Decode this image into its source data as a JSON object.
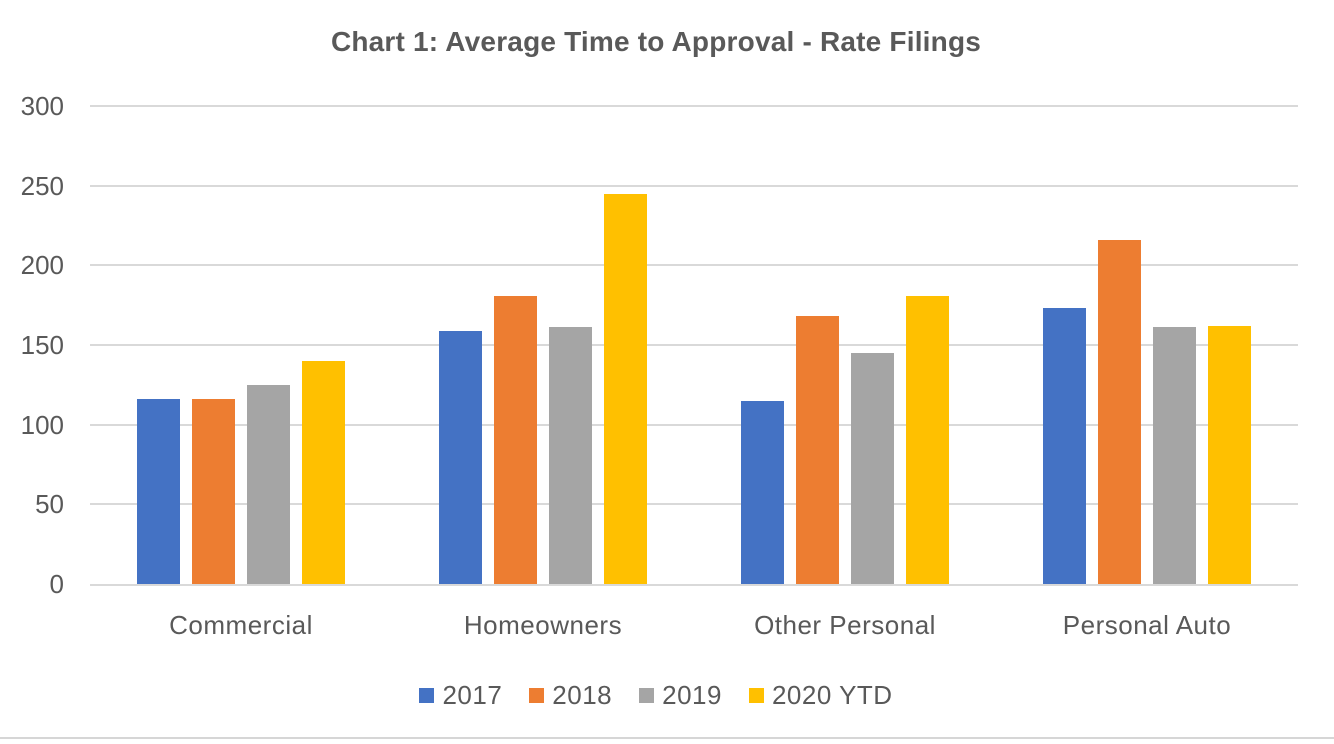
{
  "title": "Chart 1: Average Time to Approval - Rate Filings",
  "chart_data": {
    "type": "bar",
    "title": "Chart 1: Average Time to Approval - Rate Filings",
    "categories": [
      "Commercial",
      "Homeowners",
      "Other Personal",
      "Personal Auto"
    ],
    "series": [
      {
        "name": "2017",
        "color": "#4472C4",
        "values": [
          116,
          159,
          115,
          173
        ]
      },
      {
        "name": "2018",
        "color": "#ED7D31",
        "values": [
          116,
          181,
          168,
          216
        ]
      },
      {
        "name": "2019",
        "color": "#A5A5A5",
        "values": [
          125,
          161,
          145,
          161
        ]
      },
      {
        "name": "2020 YTD",
        "color": "#FFC000",
        "values": [
          140,
          245,
          181,
          162
        ]
      }
    ],
    "y_ticks": [
      300,
      250,
      200,
      150,
      100,
      50,
      0
    ],
    "ylim": [
      0,
      300
    ],
    "xlabel": "",
    "ylabel": "",
    "grid": true,
    "legend_position": "bottom"
  },
  "colors": {
    "text": "#595959",
    "gridline": "#D9D9D9",
    "divider": "#D6D6D6",
    "background": "#FFFFFF"
  }
}
